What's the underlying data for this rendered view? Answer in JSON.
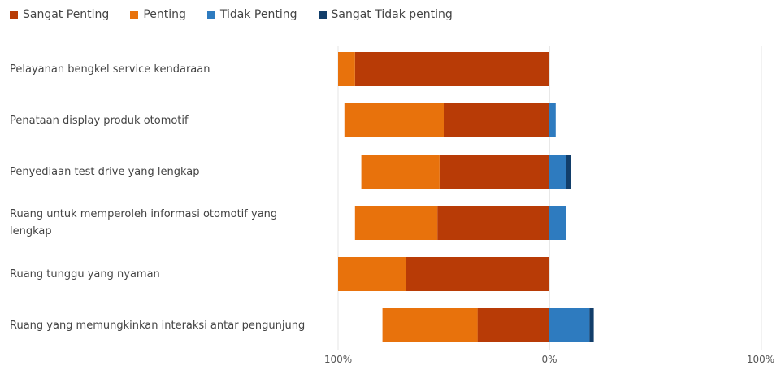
{
  "chart_data": {
    "type": "bar",
    "orientation": "horizontal-diverging",
    "legend_position": "top-left",
    "categories": [
      "Pelayanan bengkel service kendaraan",
      "Penataan display produk otomotif",
      "Penyediaan test drive yang lengkap",
      "Ruang untuk memperoleh informasi otomotif yang lengkap",
      "Ruang tunggu yang nyaman",
      "Ruang yang memungkinkan interaksi antar pengunjung"
    ],
    "series": [
      {
        "name": "Sangat Penting",
        "color": "#B83B06",
        "side": "left",
        "values": [
          92,
          50,
          52,
          53,
          68,
          34
        ]
      },
      {
        "name": "Penting",
        "color": "#E8720C",
        "side": "left",
        "values": [
          8,
          47,
          37,
          39,
          32,
          45
        ]
      },
      {
        "name": "Tidak Penting",
        "color": "#2E7BBF",
        "side": "right",
        "values": [
          0,
          3,
          8,
          8,
          0,
          19
        ]
      },
      {
        "name": "Sangat Tidak penting",
        "color": "#123E6A",
        "side": "right",
        "values": [
          0,
          0,
          2,
          0,
          0,
          2
        ]
      }
    ],
    "xlim": [
      -100,
      100
    ],
    "x_ticks": [
      {
        "value": -100,
        "label": "100%"
      },
      {
        "value": 0,
        "label": "0%"
      },
      {
        "value": 100,
        "label": "100%"
      }
    ],
    "grid": false
  }
}
